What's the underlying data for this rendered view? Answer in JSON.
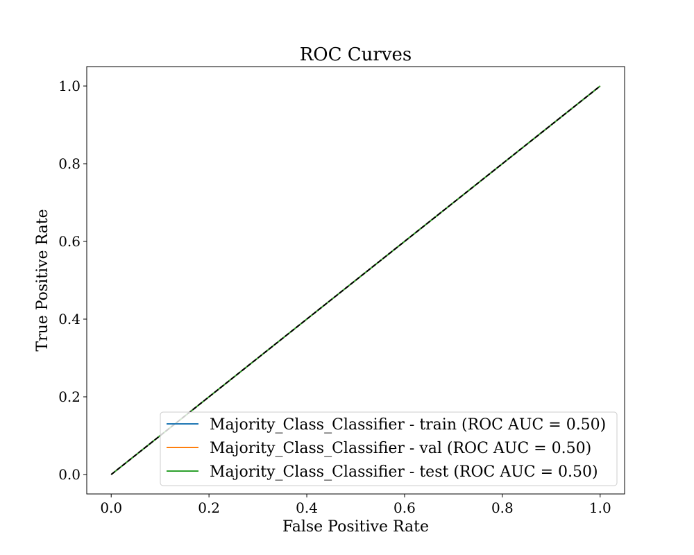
{
  "chart_data": {
    "type": "line",
    "title": "ROC Curves",
    "xlabel": "False Positive Rate",
    "ylabel": "True Positive Rate",
    "xlim": [
      -0.05,
      1.05
    ],
    "ylim": [
      -0.05,
      1.05
    ],
    "xticks": [
      0.0,
      0.2,
      0.4,
      0.6,
      0.8,
      1.0
    ],
    "yticks": [
      0.0,
      0.2,
      0.4,
      0.6,
      0.8,
      1.0
    ],
    "xtick_labels": [
      "0.0",
      "0.2",
      "0.4",
      "0.6",
      "0.8",
      "1.0"
    ],
    "ytick_labels": [
      "0.0",
      "0.2",
      "0.4",
      "0.6",
      "0.8",
      "1.0"
    ],
    "grid": false,
    "legend_position": "lower-right",
    "series": [
      {
        "name": "Majority_Class_Classifier - train (ROC AUC = 0.50)",
        "color": "#1f77b4",
        "x": [
          0.0,
          1.0
        ],
        "y": [
          0.0,
          1.0
        ]
      },
      {
        "name": "Majority_Class_Classifier - val (ROC AUC = 0.50)",
        "color": "#ff7f0e",
        "x": [
          0.0,
          1.0
        ],
        "y": [
          0.0,
          1.0
        ]
      },
      {
        "name": "Majority_Class_Classifier - test (ROC AUC = 0.50)",
        "color": "#2ca02c",
        "x": [
          0.0,
          1.0
        ],
        "y": [
          0.0,
          1.0
        ]
      }
    ],
    "reference_line": {
      "x": [
        0.0,
        1.0
      ],
      "y": [
        0.0,
        1.0
      ],
      "color": "#000000",
      "style": "dashed"
    }
  }
}
